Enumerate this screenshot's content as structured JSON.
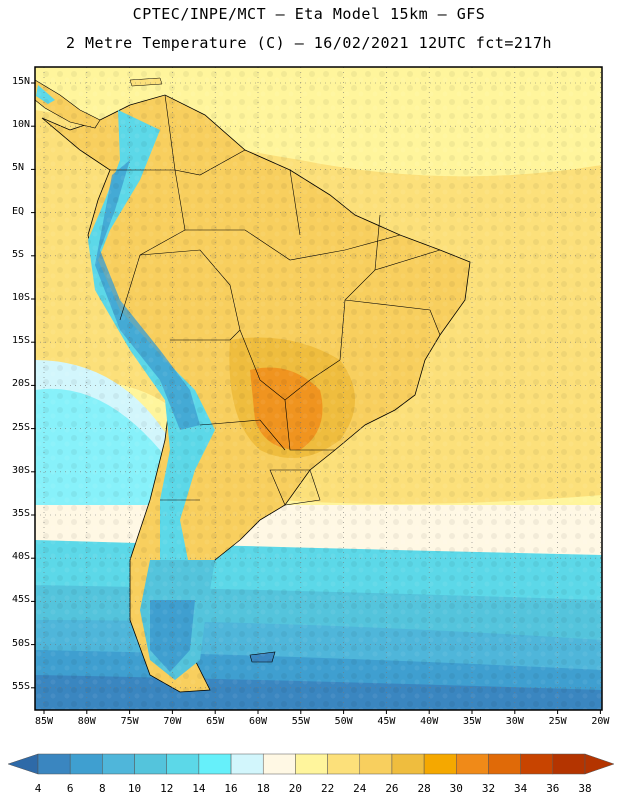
{
  "header": {
    "line1": "CPTEC/INPE/MCT –  Eta Model 15km – GFS",
    "line2": "2 Metre Temperature (C) – 16/02/2021 12UTC fct=217h"
  },
  "axes": {
    "lat_labels": [
      "15N",
      "10N",
      "5N",
      "EQ",
      "5S",
      "10S",
      "15S",
      "20S",
      "25S",
      "30S",
      "35S",
      "40S",
      "45S",
      "50S",
      "55S"
    ],
    "lon_labels": [
      "85W",
      "80W",
      "75W",
      "70W",
      "65W",
      "60W",
      "55W",
      "50W",
      "45W",
      "40W",
      "35W",
      "30W",
      "25W",
      "20W"
    ]
  },
  "colorbar": {
    "levels": [
      "4",
      "6",
      "8",
      "10",
      "12",
      "14",
      "16",
      "18",
      "20",
      "22",
      "24",
      "26",
      "28",
      "30",
      "32",
      "34",
      "36",
      "38"
    ],
    "colors": [
      "#2e6aa8",
      "#3a86c0",
      "#3f9fd0",
      "#4fb6da",
      "#54c4dc",
      "#5cd8e8",
      "#66f0fa",
      "#d2f6fc",
      "#fff8e4",
      "#fff59c",
      "#fce07a",
      "#f8cf5e",
      "#efbd3e",
      "#f5a800",
      "#f08a18",
      "#e06a08",
      "#c84400",
      "#b43400",
      "#b43400"
    ]
  }
}
